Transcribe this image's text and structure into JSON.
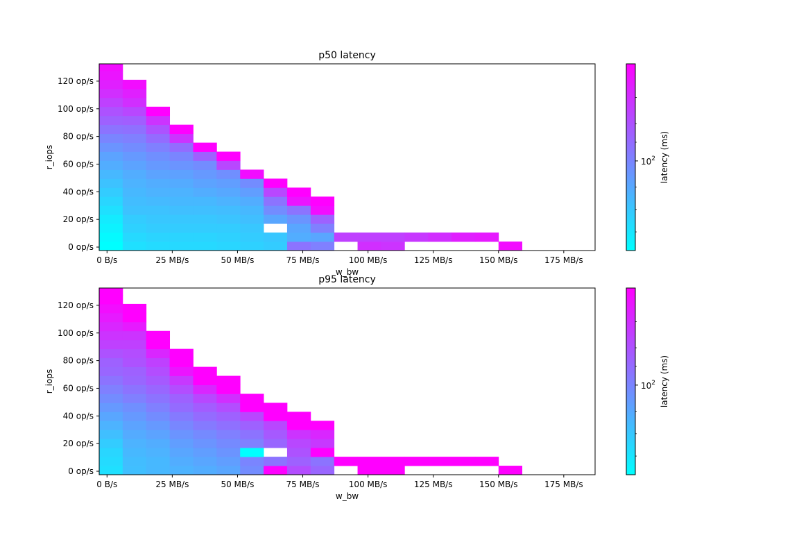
{
  "chart_data": [
    {
      "type": "heatmap",
      "title": "p50 latency",
      "xlabel": "w_bw",
      "ylabel": "r_iops",
      "xlim": [
        -3,
        187
      ],
      "ylim": [
        -2.5,
        132.5
      ],
      "x_ticks": [
        {
          "value": 0,
          "label": "0 B/s"
        },
        {
          "value": 25,
          "label": "25 MB/s"
        },
        {
          "value": 50,
          "label": "50 MB/s"
        },
        {
          "value": 75,
          "label": "75 MB/s"
        },
        {
          "value": 100,
          "label": "100 MB/s"
        },
        {
          "value": 125,
          "label": "125 MB/s"
        },
        {
          "value": 150,
          "label": "150 MB/s"
        },
        {
          "value": 175,
          "label": "175 MB/s"
        }
      ],
      "y_ticks": [
        {
          "value": 0,
          "label": "0 op/s"
        },
        {
          "value": 20,
          "label": "20 op/s"
        },
        {
          "value": 40,
          "label": "40 op/s"
        },
        {
          "value": 60,
          "label": "60 op/s"
        },
        {
          "value": 80,
          "label": "80 op/s"
        },
        {
          "value": 100,
          "label": "100 op/s"
        },
        {
          "value": 120,
          "label": "120 op/s"
        }
      ],
      "x_bin_edges": [
        -3,
        6,
        15,
        24,
        33,
        42,
        51,
        60,
        69,
        78,
        87,
        96,
        105,
        114,
        123,
        132,
        141,
        150,
        159
      ],
      "y_bin_edges": [
        -2.5,
        4,
        10.5,
        17,
        23.5,
        30,
        36.5,
        43,
        49.5,
        56,
        62.5,
        69,
        75.5,
        82,
        88.5,
        95,
        101.5,
        108,
        114.5,
        121,
        127.5,
        132.5
      ],
      "columns_shown": 18,
      "column_heights": [
        21,
        19,
        16,
        14,
        12,
        11,
        9,
        8,
        7,
        6,
        2,
        2,
        2,
        2,
        2,
        2,
        2,
        1
      ],
      "holes": [
        [
          7,
          2
        ],
        [
          10,
          0
        ],
        [
          13,
          0
        ],
        [
          14,
          0
        ],
        [
          15,
          0
        ],
        [
          16,
          0
        ]
      ],
      "colorbar": {
        "label": "latency (ms)",
        "scale": "log",
        "tick_value": 100,
        "tick_base": "10",
        "tick_exp": "2",
        "colormap": [
          "#00ffff",
          "#ff00ff"
        ]
      },
      "values": [
        [
          0.0,
          0.02,
          0.05,
          0.08,
          0.12,
          0.16,
          0.2,
          0.24,
          0.28,
          0.32,
          0.36,
          0.42,
          0.48,
          0.55,
          0.62,
          0.68,
          0.75,
          0.82,
          0.88,
          0.92,
          0.95
        ],
        [
          0.12,
          0.15,
          0.18,
          0.2,
          0.24,
          0.26,
          0.28,
          0.3,
          0.32,
          0.36,
          0.4,
          0.45,
          0.5,
          0.56,
          0.63,
          0.72,
          0.82,
          0.88,
          0.95
        ],
        [
          0.14,
          0.17,
          0.2,
          0.22,
          0.24,
          0.27,
          0.3,
          0.32,
          0.36,
          0.4,
          0.44,
          0.5,
          0.58,
          0.68,
          0.8,
          1.0
        ],
        [
          0.15,
          0.17,
          0.2,
          0.22,
          0.25,
          0.28,
          0.3,
          0.33,
          0.37,
          0.42,
          0.48,
          0.58,
          0.8,
          1.0
        ],
        [
          0.15,
          0.17,
          0.2,
          0.22,
          0.25,
          0.28,
          0.32,
          0.36,
          0.4,
          0.45,
          0.62,
          1.0
        ],
        [
          0.16,
          0.18,
          0.2,
          0.23,
          0.26,
          0.3,
          0.34,
          0.38,
          0.44,
          0.72,
          1.0
        ],
        [
          0.18,
          0.2,
          0.22,
          0.25,
          0.28,
          0.32,
          0.38,
          0.45,
          0.95
        ],
        [
          0.2,
          0.22,
          0.0,
          0.35,
          0.45,
          0.55,
          0.72,
          1.0
        ],
        [
          0.55,
          0.32,
          0.35,
          0.42,
          0.55,
          0.92,
          1.0
        ],
        [
          0.5,
          0.35,
          0.5,
          0.62,
          0.95,
          1.0
        ],
        [
          0.0,
          0.75
        ],
        [
          0.82,
          0.75
        ],
        [
          0.8,
          0.75
        ],
        [
          0.0,
          0.78
        ],
        [
          0.0,
          0.82
        ],
        [
          0.0,
          0.88
        ],
        [
          0.0,
          0.9
        ],
        [
          0.95
        ]
      ]
    },
    {
      "type": "heatmap",
      "title": "p95 latency",
      "xlabel": "w_bw",
      "ylabel": "r_iops",
      "xlim": [
        -3,
        187
      ],
      "ylim": [
        -2.5,
        132.5
      ],
      "x_ticks": [
        {
          "value": 0,
          "label": "0 B/s"
        },
        {
          "value": 25,
          "label": "25 MB/s"
        },
        {
          "value": 50,
          "label": "50 MB/s"
        },
        {
          "value": 75,
          "label": "75 MB/s"
        },
        {
          "value": 100,
          "label": "100 MB/s"
        },
        {
          "value": 125,
          "label": "125 MB/s"
        },
        {
          "value": 150,
          "label": "150 MB/s"
        },
        {
          "value": 175,
          "label": "175 MB/s"
        }
      ],
      "y_ticks": [
        {
          "value": 0,
          "label": "0 op/s"
        },
        {
          "value": 20,
          "label": "20 op/s"
        },
        {
          "value": 40,
          "label": "40 op/s"
        },
        {
          "value": 60,
          "label": "60 op/s"
        },
        {
          "value": 80,
          "label": "80 op/s"
        },
        {
          "value": 100,
          "label": "100 op/s"
        },
        {
          "value": 120,
          "label": "120 op/s"
        }
      ],
      "x_bin_edges": [
        -3,
        6,
        15,
        24,
        33,
        42,
        51,
        60,
        69,
        78,
        87,
        96,
        105,
        114,
        123,
        132,
        141,
        150,
        159
      ],
      "y_bin_edges": [
        -2.5,
        4,
        10.5,
        17,
        23.5,
        30,
        36.5,
        43,
        49.5,
        56,
        62.5,
        69,
        75.5,
        82,
        88.5,
        95,
        101.5,
        108,
        114.5,
        121,
        127.5,
        132.5
      ],
      "columns_shown": 18,
      "column_heights": [
        21,
        19,
        16,
        14,
        12,
        11,
        9,
        8,
        7,
        6,
        2,
        2,
        2,
        2,
        2,
        2,
        2,
        1
      ],
      "holes": [
        [
          7,
          2
        ],
        [
          10,
          0
        ],
        [
          13,
          0
        ],
        [
          14,
          0
        ],
        [
          15,
          0
        ],
        [
          16,
          0
        ]
      ],
      "colorbar": {
        "label": "latency (ms)",
        "scale": "log",
        "tick_value": 100,
        "tick_base": "10",
        "tick_exp": "2",
        "colormap": [
          "#00ffff",
          "#ff00ff"
        ]
      },
      "values": [
        [
          0.12,
          0.14,
          0.16,
          0.2,
          0.25,
          0.3,
          0.35,
          0.4,
          0.45,
          0.5,
          0.55,
          0.6,
          0.62,
          0.68,
          0.75,
          0.8,
          0.85,
          0.9,
          0.95,
          1.0,
          1.0
        ],
        [
          0.25,
          0.26,
          0.28,
          0.3,
          0.33,
          0.36,
          0.4,
          0.44,
          0.5,
          0.55,
          0.6,
          0.62,
          0.68,
          0.7,
          0.75,
          0.8,
          0.9,
          1.0,
          1.0
        ],
        [
          0.28,
          0.28,
          0.3,
          0.32,
          0.36,
          0.4,
          0.45,
          0.5,
          0.55,
          0.6,
          0.65,
          0.7,
          0.75,
          0.85,
          1.0,
          1.0
        ],
        [
          0.3,
          0.32,
          0.35,
          0.38,
          0.42,
          0.47,
          0.52,
          0.58,
          0.62,
          0.7,
          0.78,
          0.92,
          1.0,
          1.0
        ],
        [
          0.32,
          0.35,
          0.38,
          0.42,
          0.46,
          0.52,
          0.58,
          0.64,
          0.72,
          0.85,
          1.0,
          1.0
        ],
        [
          0.35,
          0.38,
          0.42,
          0.46,
          0.5,
          0.56,
          0.62,
          0.7,
          0.82,
          1.0,
          1.0
        ],
        [
          0.45,
          0.48,
          0.0,
          0.5,
          0.55,
          0.62,
          0.72,
          1.0,
          1.0
        ],
        [
          1.0,
          0.55,
          0.0,
          0.6,
          0.65,
          0.72,
          1.0,
          1.0
        ],
        [
          0.7,
          0.62,
          0.68,
          0.72,
          0.8,
          1.0,
          1.0
        ],
        [
          0.6,
          0.55,
          1.0,
          0.78,
          0.85,
          1.0
        ],
        [
          0.0,
          1.0
        ],
        [
          1.0,
          1.0
        ],
        [
          1.0,
          1.0
        ],
        [
          0.0,
          1.0
        ],
        [
          0.0,
          1.0
        ],
        [
          0.0,
          1.0
        ],
        [
          0.0,
          1.0
        ],
        [
          1.0
        ]
      ]
    }
  ]
}
